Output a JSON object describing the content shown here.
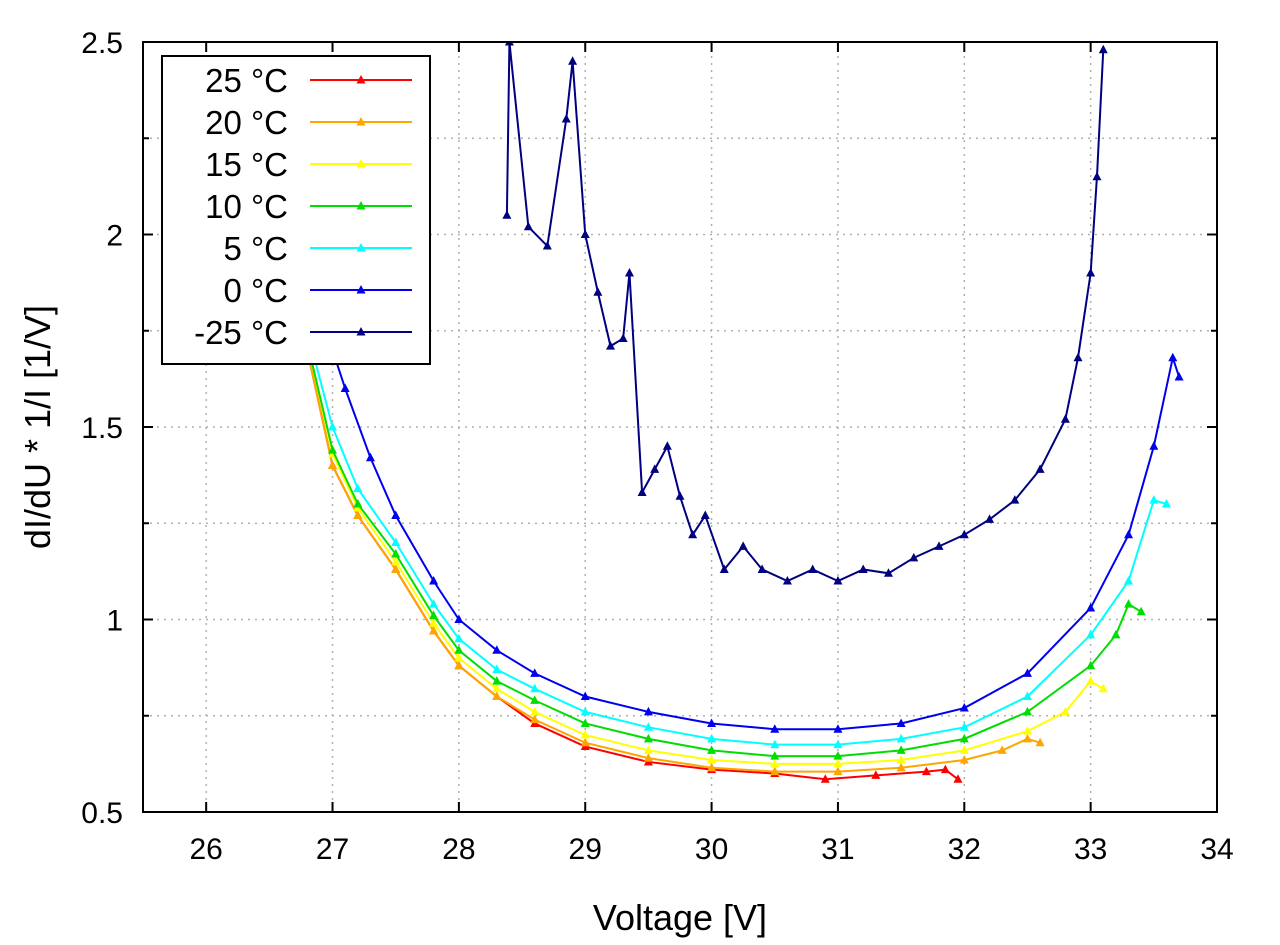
{
  "chart_data": {
    "type": "line",
    "xlabel": "Voltage [V]",
    "ylabel": "dI/dU * 1/I [1/V]",
    "xlim": [
      25.5,
      34
    ],
    "ylim": [
      0.5,
      2.5
    ],
    "x_ticks": [
      "26",
      "27",
      "28",
      "29",
      "30",
      "31",
      "32",
      "33",
      "34"
    ],
    "y_ticks": [
      "0.5",
      "1",
      "1.5",
      "2",
      "2.5"
    ],
    "grid": true,
    "legend_position": "top-left",
    "marker": "triangle",
    "series": [
      {
        "name": "25 °C",
        "color": "#ff0000",
        "x": [
          26.8,
          27.0,
          27.2,
          27.5,
          27.8,
          28.0,
          28.3,
          28.6,
          29.0,
          29.5,
          30.0,
          30.5,
          30.9,
          31.3,
          31.7,
          31.85,
          31.95
        ],
        "y": [
          1.7,
          1.4,
          1.27,
          1.13,
          0.97,
          0.88,
          0.8,
          0.73,
          0.67,
          0.63,
          0.61,
          0.6,
          0.585,
          0.595,
          0.605,
          0.61,
          0.585
        ]
      },
      {
        "name": "20 °C",
        "color": "#ffa500",
        "x": [
          26.8,
          27.0,
          27.2,
          27.5,
          27.8,
          28.0,
          28.3,
          28.6,
          29.0,
          29.5,
          30.0,
          30.5,
          31.0,
          31.5,
          32.0,
          32.3,
          32.5,
          32.6
        ],
        "y": [
          1.7,
          1.4,
          1.27,
          1.13,
          0.97,
          0.88,
          0.8,
          0.74,
          0.68,
          0.64,
          0.615,
          0.605,
          0.605,
          0.615,
          0.635,
          0.66,
          0.69,
          0.68
        ]
      },
      {
        "name": "15 °C",
        "color": "#ffff00",
        "x": [
          26.8,
          27.0,
          27.2,
          27.5,
          27.8,
          28.0,
          28.3,
          28.6,
          29.0,
          29.5,
          30.0,
          30.5,
          31.0,
          31.5,
          32.0,
          32.5,
          32.8,
          33.0,
          33.1
        ],
        "y": [
          1.72,
          1.43,
          1.29,
          1.15,
          0.99,
          0.9,
          0.82,
          0.76,
          0.7,
          0.66,
          0.635,
          0.625,
          0.625,
          0.635,
          0.66,
          0.71,
          0.76,
          0.84,
          0.82
        ]
      },
      {
        "name": "10 °C",
        "color": "#00dd00",
        "x": [
          26.8,
          27.0,
          27.2,
          27.5,
          27.8,
          28.0,
          28.3,
          28.6,
          29.0,
          29.5,
          30.0,
          30.5,
          31.0,
          31.5,
          32.0,
          32.5,
          33.0,
          33.2,
          33.3,
          33.4
        ],
        "y": [
          1.72,
          1.44,
          1.3,
          1.17,
          1.01,
          0.92,
          0.84,
          0.79,
          0.73,
          0.69,
          0.66,
          0.645,
          0.645,
          0.66,
          0.69,
          0.76,
          0.88,
          0.96,
          1.04,
          1.02
        ]
      },
      {
        "name": "5 °C",
        "color": "#00ffff",
        "x": [
          26.8,
          27.0,
          27.2,
          27.5,
          27.8,
          28.0,
          28.3,
          28.6,
          29.0,
          29.5,
          30.0,
          30.5,
          31.0,
          31.5,
          32.0,
          32.5,
          33.0,
          33.3,
          33.5,
          33.6
        ],
        "y": [
          1.75,
          1.5,
          1.34,
          1.2,
          1.04,
          0.95,
          0.87,
          0.82,
          0.76,
          0.72,
          0.69,
          0.675,
          0.675,
          0.69,
          0.72,
          0.8,
          0.96,
          1.1,
          1.31,
          1.3
        ]
      },
      {
        "name": "0 °C",
        "color": "#0000ee",
        "x": [
          26.9,
          27.1,
          27.3,
          27.5,
          27.8,
          28.0,
          28.3,
          28.6,
          29.0,
          29.5,
          30.0,
          30.5,
          31.0,
          31.5,
          32.0,
          32.5,
          33.0,
          33.3,
          33.5,
          33.65,
          33.7
        ],
        "y": [
          1.8,
          1.6,
          1.42,
          1.27,
          1.1,
          1.0,
          0.92,
          0.86,
          0.8,
          0.76,
          0.73,
          0.715,
          0.715,
          0.73,
          0.77,
          0.86,
          1.03,
          1.22,
          1.45,
          1.68,
          1.63
        ]
      },
      {
        "name": "-25 °C",
        "color": "#000080",
        "x": [
          28.38,
          28.4,
          28.55,
          28.7,
          28.85,
          28.9,
          29.0,
          29.1,
          29.2,
          29.3,
          29.35,
          29.45,
          29.55,
          29.65,
          29.75,
          29.85,
          29.95,
          30.1,
          30.25,
          30.4,
          30.6,
          30.8,
          31.0,
          31.2,
          31.4,
          31.6,
          31.8,
          32.0,
          32.2,
          32.4,
          32.6,
          32.8,
          32.9,
          33.0,
          33.05,
          33.1
        ],
        "y": [
          2.05,
          2.5,
          2.02,
          1.97,
          2.3,
          2.45,
          2.0,
          1.85,
          1.71,
          1.73,
          1.9,
          1.33,
          1.39,
          1.45,
          1.32,
          1.22,
          1.27,
          1.13,
          1.19,
          1.13,
          1.1,
          1.13,
          1.1,
          1.13,
          1.12,
          1.16,
          1.19,
          1.22,
          1.26,
          1.31,
          1.39,
          1.52,
          1.68,
          1.9,
          2.15,
          2.48
        ]
      }
    ]
  }
}
